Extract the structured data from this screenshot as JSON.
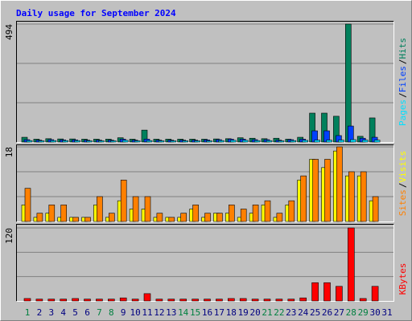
{
  "title": "Daily usage for September 2024",
  "legend_separator": "/",
  "chart_data": [
    {
      "type": "bar",
      "series": [
        {
          "name": "Hits",
          "color": "#00805c",
          "values": [
            20,
            12,
            14,
            13,
            13,
            12,
            12,
            12,
            18,
            12,
            50,
            12,
            12,
            12,
            12,
            12,
            13,
            14,
            18,
            16,
            14,
            16,
            12,
            20,
            121,
            121,
            108,
            494,
            24,
            101,
            null
          ]
        },
        {
          "name": "Files",
          "color": "#0040ff",
          "values": [
            10,
            8,
            10,
            9,
            9,
            8,
            8,
            8,
            12,
            8,
            12,
            8,
            8,
            8,
            8,
            9,
            10,
            12,
            12,
            10,
            10,
            8,
            10,
            12,
            47,
            47,
            27,
            67,
            16,
            20,
            null
          ]
        },
        {
          "name": "Pages",
          "color": "#00e0ff",
          "values": [
            6,
            5,
            6,
            6,
            6,
            5,
            5,
            5,
            7,
            5,
            6,
            5,
            5,
            5,
            5,
            5,
            6,
            7,
            7,
            6,
            6,
            5,
            6,
            7,
            8,
            8,
            8,
            10,
            8,
            8,
            null
          ]
        }
      ],
      "ylim": [
        0,
        494
      ],
      "yticks": [
        494
      ]
    },
    {
      "type": "bar",
      "series": [
        {
          "name": "Visits",
          "color": "#ffff00",
          "values": [
            4,
            1,
            2,
            1,
            1,
            1,
            4,
            1,
            5,
            3,
            3,
            1,
            1,
            1,
            3,
            1,
            2,
            2,
            1,
            2,
            4,
            1,
            4,
            10,
            15,
            13,
            17,
            11,
            11,
            5,
            null
          ]
        },
        {
          "name": "Sites",
          "color": "#ff8000",
          "values": [
            8,
            2,
            4,
            4,
            1,
            1,
            6,
            2,
            10,
            6,
            6,
            2,
            1,
            2,
            4,
            2,
            2,
            4,
            3,
            4,
            5,
            2,
            5,
            11,
            15,
            15,
            18,
            12,
            12,
            6,
            null
          ]
        }
      ],
      "ylim": [
        0,
        18
      ],
      "yticks": [
        18
      ]
    },
    {
      "type": "bar",
      "series": [
        {
          "name": "KBytes",
          "color": "#ff0000",
          "values": [
            4,
            3,
            3,
            3,
            4,
            3,
            3,
            3,
            5,
            3,
            12,
            3,
            3,
            3,
            3,
            3,
            3,
            4,
            4,
            3,
            3,
            3,
            3,
            5,
            30,
            30,
            24,
            120,
            4,
            24,
            null
          ]
        }
      ],
      "ylim": [
        0,
        120
      ],
      "yticks": [
        120
      ],
      "categories": [
        "1",
        "2",
        "3",
        "4",
        "5",
        "6",
        "7",
        "8",
        "9",
        "10",
        "11",
        "12",
        "13",
        "14",
        "15",
        "16",
        "17",
        "18",
        "19",
        "20",
        "21",
        "22",
        "23",
        "24",
        "25",
        "26",
        "27",
        "28",
        "29",
        "30",
        "31"
      ],
      "category_colors": [
        "#008040",
        "#000080",
        "#000080",
        "#000080",
        "#000080",
        "#000080",
        "#008040",
        "#008040",
        "#000080",
        "#000080",
        "#000080",
        "#000080",
        "#000080",
        "#008040",
        "#008040",
        "#000080",
        "#000080",
        "#000080",
        "#000080",
        "#000080",
        "#008040",
        "#008040",
        "#000080",
        "#000080",
        "#000080",
        "#000080",
        "#000080",
        "#008040",
        "#008040",
        "#000080",
        "#000080"
      ]
    }
  ]
}
